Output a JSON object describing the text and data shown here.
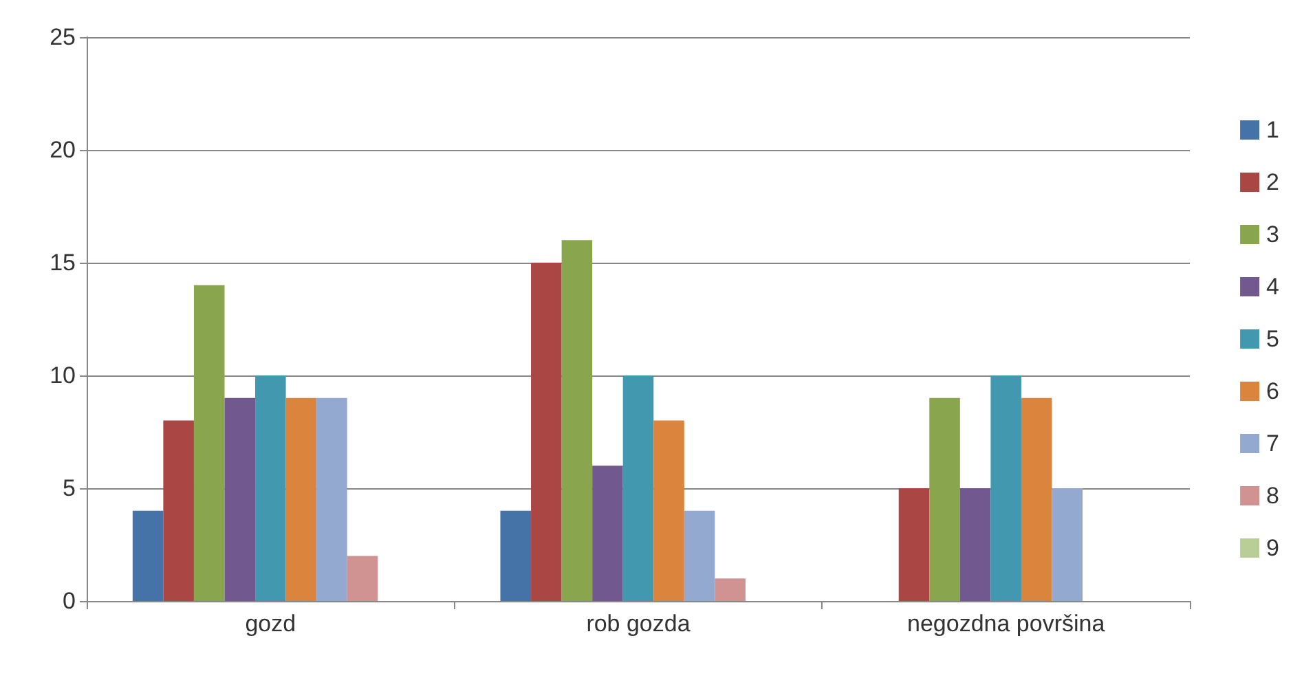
{
  "chart_data": {
    "type": "bar",
    "categories": [
      "gozd",
      "rob gozda",
      "negozdna površina"
    ],
    "series": [
      {
        "name": "1",
        "color": "#4572a7",
        "values": [
          4,
          4,
          0
        ]
      },
      {
        "name": "2",
        "color": "#aa4643",
        "values": [
          8,
          15,
          5
        ]
      },
      {
        "name": "3",
        "color": "#89a54e",
        "values": [
          14,
          16,
          9
        ]
      },
      {
        "name": "4",
        "color": "#71588f",
        "values": [
          9,
          6,
          5
        ]
      },
      {
        "name": "5",
        "color": "#4198af",
        "values": [
          10,
          10,
          10
        ]
      },
      {
        "name": "6",
        "color": "#db843d",
        "values": [
          9,
          8,
          9
        ]
      },
      {
        "name": "7",
        "color": "#93a9cf",
        "values": [
          9,
          4,
          5
        ]
      },
      {
        "name": "8",
        "color": "#d19392",
        "values": [
          2,
          1,
          0
        ]
      },
      {
        "name": "9",
        "color": "#b9cd96",
        "values": [
          0,
          0,
          0
        ]
      }
    ],
    "ylim": [
      0,
      25
    ],
    "yticks": [
      0,
      5,
      10,
      15,
      20,
      25
    ],
    "grid": "y",
    "legend": "right"
  }
}
